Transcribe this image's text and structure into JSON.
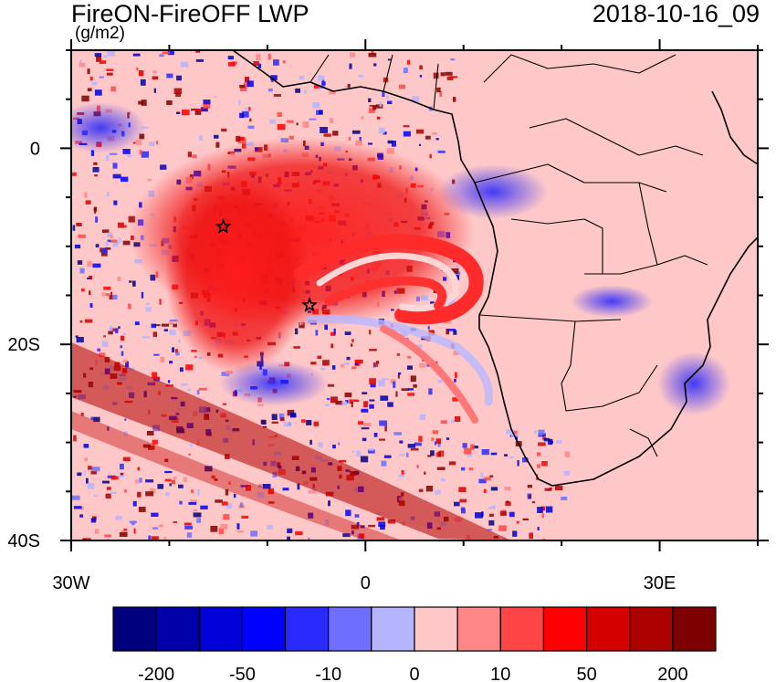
{
  "title_left": "FireON-FireOFF LWP",
  "title_right": "2018-10-16_09",
  "units": "(g/m2)",
  "y_axis": {
    "ticks": [
      {
        "lat": 0,
        "label": "0"
      },
      {
        "lat": -20,
        "label": "20S"
      },
      {
        "lat": -40,
        "label": "40S"
      }
    ]
  },
  "x_axis": {
    "ticks": [
      {
        "lon": -30,
        "label": "30W"
      },
      {
        "lon": 0,
        "label": "0"
      },
      {
        "lon": 30,
        "label": "30E"
      }
    ]
  },
  "extent": {
    "lon": [
      -30,
      40
    ],
    "lat": [
      -40,
      10
    ]
  },
  "colorbar": {
    "colors": [
      "#00007f",
      "#0000a8",
      "#0000d6",
      "#0000ff",
      "#2a2aff",
      "#6f6fff",
      "#b4b4ff",
      "#ffc8c8",
      "#ff8787",
      "#ff4545",
      "#ff0000",
      "#d40000",
      "#aa0000",
      "#7f0000"
    ],
    "labels": [
      "-200",
      "-50",
      "-10",
      "0",
      "10",
      "50",
      "200"
    ]
  },
  "markers": [
    {
      "lon": -14.5,
      "lat": -8,
      "symbol": "star"
    },
    {
      "lon": -5.7,
      "lat": -16,
      "symbol": "star"
    }
  ]
}
